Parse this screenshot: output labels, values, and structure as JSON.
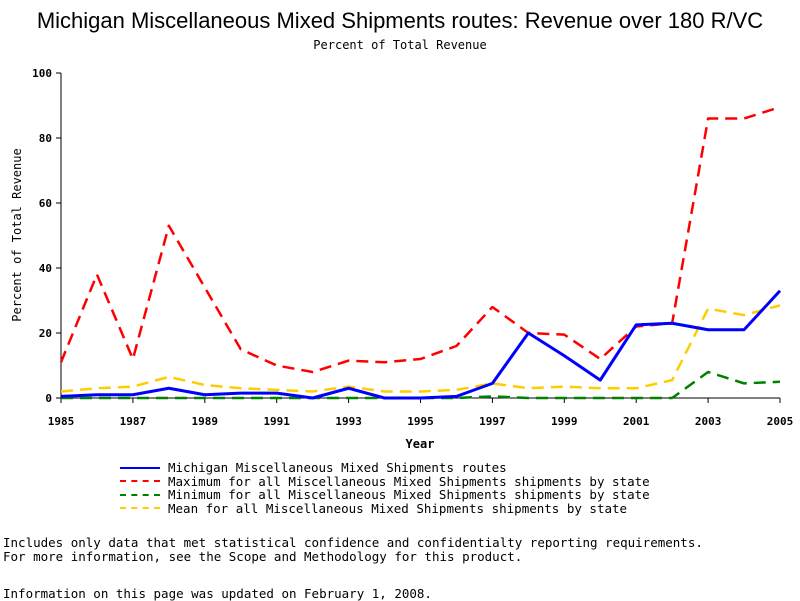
{
  "chart_data": {
    "type": "line",
    "title": "Michigan Miscellaneous Mixed Shipments routes: Revenue over 180 R/VC",
    "subtitle": "Percent of Total Revenue",
    "xlabel": "Year",
    "ylabel": "Percent of Total Revenue",
    "xlim": [
      1985,
      2005
    ],
    "ylim": [
      0,
      100
    ],
    "xticks": [
      1985,
      1987,
      1989,
      1991,
      1993,
      1995,
      1997,
      1999,
      2001,
      2003,
      2005
    ],
    "yticks": [
      0,
      20,
      40,
      60,
      80,
      100
    ],
    "grid": false,
    "legend_position": "bottom",
    "x": [
      1985,
      1986,
      1987,
      1988,
      1989,
      1990,
      1991,
      1992,
      1993,
      1994,
      1995,
      1996,
      1997,
      1998,
      1999,
      2000,
      2001,
      2002,
      2003,
      2004,
      2005
    ],
    "series": [
      {
        "name": "Michigan Miscellaneous Mixed Shipments routes",
        "color": "#0000ff",
        "style": "solid",
        "values": [
          0.5,
          1.0,
          1.0,
          3.0,
          1.0,
          1.5,
          1.5,
          0.0,
          3.0,
          0.0,
          0.0,
          0.5,
          4.5,
          20.0,
          13.0,
          5.5,
          22.5,
          23.0,
          21.0,
          21.0,
          33.0
        ]
      },
      {
        "name": "Maximum for all Miscellaneous Mixed Shipments shipments by state",
        "color": "#ff0000",
        "style": "dashed",
        "values": [
          11.0,
          38.0,
          12.0,
          53.0,
          34.0,
          15.0,
          10.0,
          8.0,
          11.5,
          11.0,
          12.0,
          16.0,
          28.0,
          20.0,
          19.5,
          12.0,
          22.0,
          23.0,
          86.0,
          86.0,
          89.5
        ]
      },
      {
        "name": "Minimum for all Miscellaneous Mixed Shipments shipments by state",
        "color": "#008000",
        "style": "dashed",
        "values": [
          0,
          0,
          0,
          0,
          0,
          0,
          0,
          0,
          0,
          0,
          0,
          0,
          0.5,
          0,
          0,
          0,
          0,
          0,
          8.0,
          4.5,
          5.0
        ]
      },
      {
        "name": "Mean for all Miscellaneous Mixed Shipments shipments by state",
        "color": "#ffcc00",
        "style": "dashed",
        "values": [
          2.0,
          3.0,
          3.5,
          6.5,
          4.0,
          3.0,
          2.5,
          2.0,
          3.5,
          2.0,
          2.0,
          2.5,
          4.5,
          3.0,
          3.5,
          3.0,
          3.0,
          5.5,
          27.5,
          25.5,
          28.5
        ]
      }
    ]
  },
  "notes": {
    "line1": "Includes only data that met statistical confidence and confidentialty reporting requirements.",
    "line2": "For more information, see the Scope and Methodology for this product."
  },
  "updated": "Information on this page was updated on February 1, 2008."
}
